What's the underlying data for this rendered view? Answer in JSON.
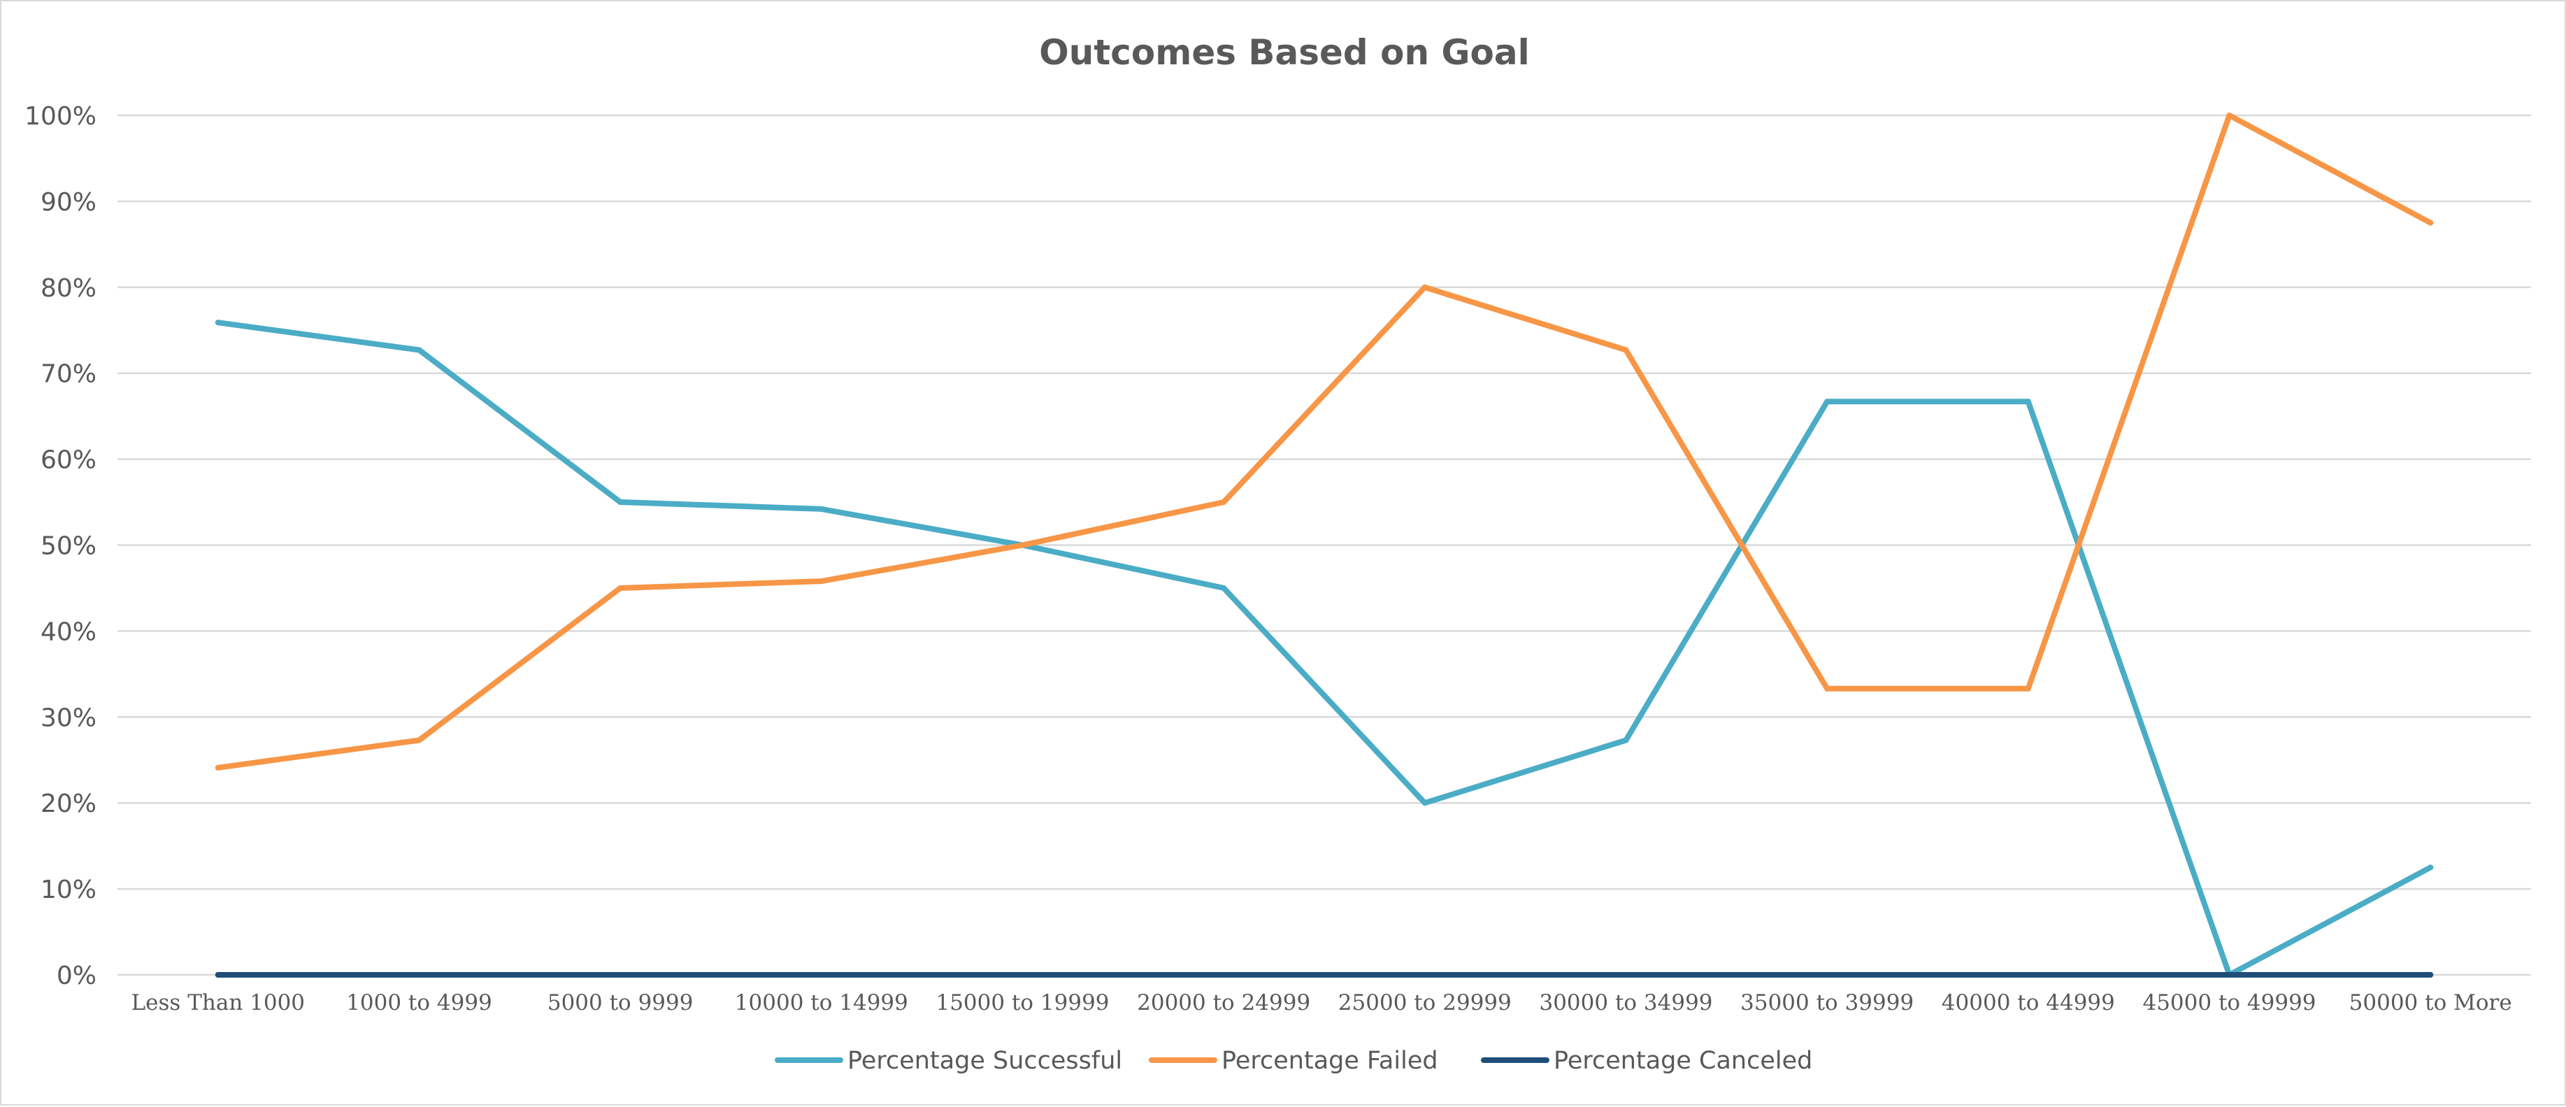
{
  "chart_data": {
    "type": "line",
    "title": "Outcomes Based on Goal",
    "xlabel": "",
    "ylabel": "",
    "categories": [
      "Less Than 1000",
      "1000 to 4999",
      "5000 to 9999",
      "10000 to 14999",
      "15000 to 19999",
      "20000 to 24999",
      "25000 to 29999",
      "30000 to 34999",
      "35000 to 39999",
      "40000 to 44999",
      "45000 to 49999",
      "50000 to More"
    ],
    "ylim": [
      0,
      100
    ],
    "yticks": [
      0,
      10,
      20,
      30,
      40,
      50,
      60,
      70,
      80,
      90,
      100
    ],
    "ytick_labels": [
      "0%",
      "10%",
      "20%",
      "30%",
      "40%",
      "50%",
      "60%",
      "70%",
      "80%",
      "90%",
      "100%"
    ],
    "grid": true,
    "legend_position": "bottom",
    "series": [
      {
        "name": "Percentage Successful",
        "color": "#4bacc6",
        "values": [
          75.9,
          72.7,
          55.0,
          54.2,
          50.0,
          45.0,
          20.0,
          27.3,
          66.7,
          66.7,
          0.0,
          12.5
        ]
      },
      {
        "name": "Percentage Failed",
        "color": "#f79646",
        "values": [
          24.1,
          27.3,
          45.0,
          45.8,
          50.0,
          55.0,
          80.0,
          72.7,
          33.3,
          33.3,
          100.0,
          87.5
        ]
      },
      {
        "name": "Percentage Canceled",
        "color": "#1f4e79",
        "values": [
          0,
          0,
          0,
          0,
          0,
          0,
          0,
          0,
          0,
          0,
          0,
          0
        ]
      }
    ]
  }
}
